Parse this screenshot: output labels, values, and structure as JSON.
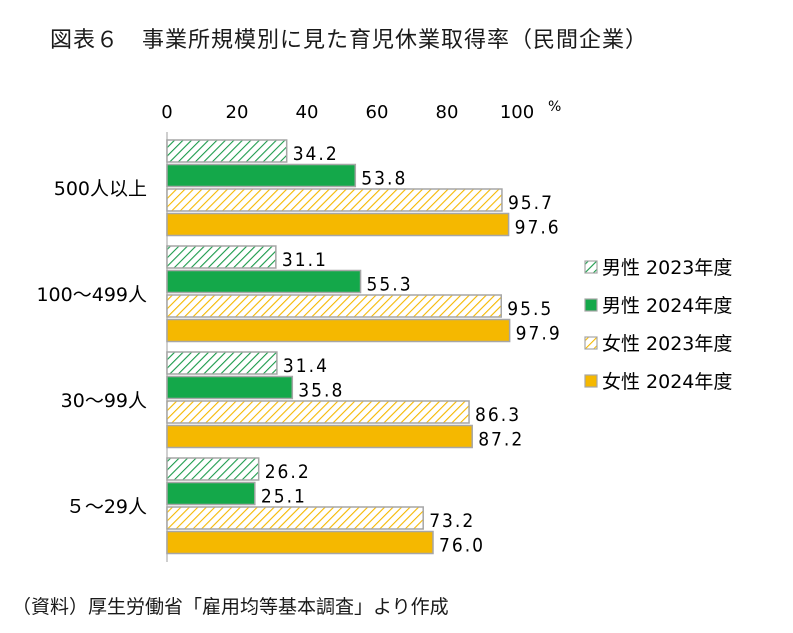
{
  "title": "図表６　事業所規模別に見た育児休業取得率（民間企業）",
  "source": "（資料）厚生労働省「雇用均等基本調査」より作成",
  "chart_data": {
    "type": "bar",
    "orientation": "horizontal",
    "categories": [
      "500人以上",
      "100～499人",
      "30～99人",
      "５～29人"
    ],
    "series": [
      {
        "name": "男性  2023年度",
        "values": [
          34.2,
          31.1,
          31.4,
          26.2
        ],
        "color": "#1a9a4a",
        "pattern": "hatch"
      },
      {
        "name": "男性  2024年度",
        "values": [
          53.8,
          55.3,
          35.8,
          25.1
        ],
        "color": "#14a84a",
        "pattern": "solid"
      },
      {
        "name": "女性  2023年度",
        "values": [
          95.7,
          95.5,
          86.3,
          73.2
        ],
        "color": "#f5b800",
        "pattern": "hatch"
      },
      {
        "name": "女性  2024年度",
        "values": [
          97.6,
          97.9,
          87.2,
          76.0
        ],
        "color": "#f5b800",
        "pattern": "solid"
      }
    ],
    "value_labels": [
      [
        "34.2",
        "53.8",
        "95.7",
        "97.6"
      ],
      [
        "31.1",
        "55.3",
        "95.5",
        "97.9"
      ],
      [
        "31.4",
        "35.8",
        "86.3",
        "87.2"
      ],
      [
        "26.2",
        "25.1",
        "73.2",
        "76.0"
      ]
    ],
    "xlim": [
      0,
      100
    ],
    "xticks": [
      "0",
      "20",
      "40",
      "60",
      "80",
      "100"
    ],
    "xticks_values": [
      0,
      20,
      40,
      60,
      80,
      100
    ],
    "unit": "%",
    "legend_position": "right"
  }
}
